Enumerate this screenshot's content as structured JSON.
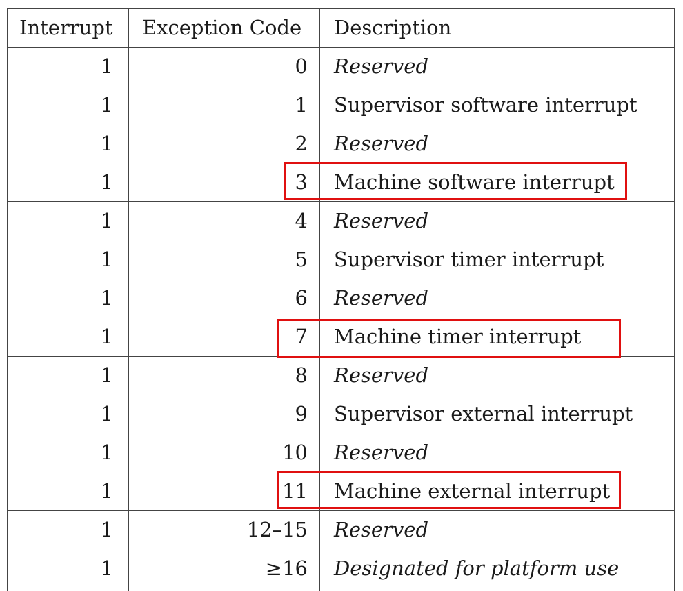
{
  "table": {
    "headers": [
      "Interrupt",
      "Exception Code",
      "Description"
    ],
    "rows": [
      {
        "interrupt": "1",
        "code": "0",
        "description": "Reserved",
        "italic": true
      },
      {
        "interrupt": "1",
        "code": "1",
        "description": "Supervisor software interrupt",
        "italic": false
      },
      {
        "interrupt": "1",
        "code": "2",
        "description": "Reserved",
        "italic": true
      },
      {
        "interrupt": "1",
        "code": "3",
        "description": "Machine software interrupt",
        "italic": false,
        "highlighted": true
      },
      {
        "interrupt": "1",
        "code": "4",
        "description": "Reserved",
        "italic": true
      },
      {
        "interrupt": "1",
        "code": "5",
        "description": "Supervisor timer interrupt",
        "italic": false
      },
      {
        "interrupt": "1",
        "code": "6",
        "description": "Reserved",
        "italic": true
      },
      {
        "interrupt": "1",
        "code": "7",
        "description": "Machine timer interrupt",
        "italic": false,
        "highlighted": true
      },
      {
        "interrupt": "1",
        "code": "8",
        "description": "Reserved",
        "italic": true
      },
      {
        "interrupt": "1",
        "code": "9",
        "description": "Supervisor external interrupt",
        "italic": false
      },
      {
        "interrupt": "1",
        "code": "10",
        "description": "Reserved",
        "italic": true
      },
      {
        "interrupt": "1",
        "code": "11",
        "description": "Machine external interrupt",
        "italic": false,
        "highlighted": true
      },
      {
        "interrupt": "1",
        "code": "12–15",
        "description": "Reserved",
        "italic": true
      },
      {
        "interrupt": "1",
        "code": "≥16",
        "description": "Designated for platform use",
        "italic": true
      }
    ]
  },
  "colors": {
    "highlight_box": "#e01010",
    "rule": "#444444"
  }
}
